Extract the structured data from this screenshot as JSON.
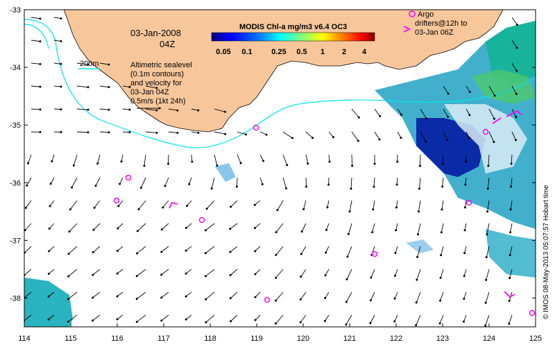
{
  "map": {
    "date": "03-Jan-2008",
    "time": "04Z",
    "depth_label": "200m",
    "sealevel_lines": [
      "Altimetric sealevel",
      "(0.1m contours)",
      "and velocity for",
      "03-Jan 04Z",
      "0.5m/s (1kt 24h)"
    ],
    "colorbar": {
      "title": "MODIS Chl-a mg/m3 v6.4 OC3",
      "ticks": [
        "0.05",
        "0.1",
        "0.25",
        "0.5",
        "1",
        "2",
        "4"
      ],
      "colors": [
        "#00007f",
        "#0000ff",
        "#0080ff",
        "#00ffff",
        "#80ff80",
        "#ffff00",
        "#ff8000",
        "#ff0000",
        "#7f0000"
      ]
    },
    "argo_legend": [
      "Argo",
      "drifters@12h to",
      "03-Jan 06Z"
    ],
    "credit": "© IMOS 08-May-2013 05:07:57 Hobart time",
    "x_ticks": [
      "114",
      "115",
      "116",
      "117",
      "118",
      "119",
      "120",
      "121",
      "122",
      "123",
      "124",
      "125"
    ],
    "y_ticks": [
      "-33",
      "-34",
      "-35",
      "-36",
      "-37",
      "-38"
    ],
    "colors": {
      "land": "#f7c79b",
      "isobath": "#00e5ee",
      "argo": "#ff00ff"
    }
  }
}
